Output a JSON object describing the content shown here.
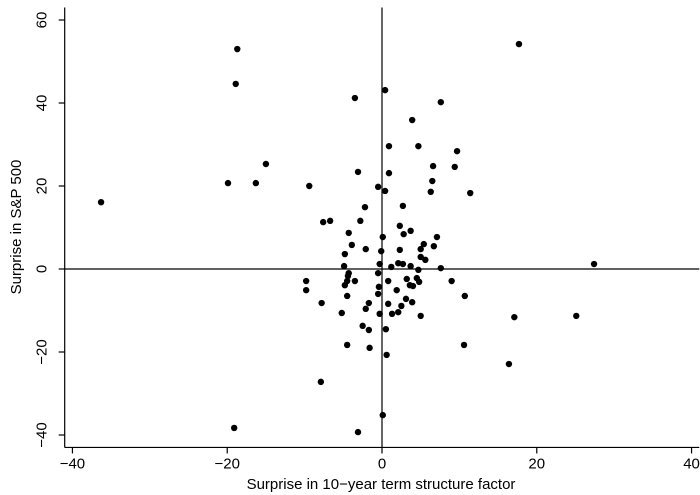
{
  "chart_data": {
    "type": "scatter",
    "xlabel": "Surprise in 10−year term structure factor",
    "ylabel": "Surprise in S&P 500",
    "xlim": [
      -41,
      41
    ],
    "ylim": [
      -43,
      63
    ],
    "xticks": [
      {
        "value": -40,
        "label": "−40"
      },
      {
        "value": -20,
        "label": "−20"
      },
      0,
      20,
      40
    ],
    "yticks": [
      {
        "value": -40,
        "label": "−40"
      },
      {
        "value": -20,
        "label": "−20"
      },
      0,
      20,
      40,
      60
    ],
    "reference_lines": {
      "x": 0,
      "y": 0
    },
    "color": "#000000",
    "x": [
      -18.7,
      -18.9,
      17.7,
      0.4,
      -3.5,
      7.6,
      3.9,
      0.9,
      4.7,
      9.7,
      -15.0,
      6.6,
      9.4,
      0.9,
      -3.1,
      6.5,
      -19.9,
      -16.3,
      -9.4,
      -0.5,
      0.4,
      6.3,
      11.4,
      -36.3,
      2.7,
      -2.2,
      -6.7,
      -7.6,
      -2.8,
      2.3,
      3.7,
      2.8,
      -4.3,
      0.1,
      7.1,
      -3.9,
      5.4,
      -2.1,
      2.3,
      -0.1,
      -4.8,
      6.7,
      5.0,
      5.0,
      5.6,
      2.1,
      2.7,
      -0.3,
      3.7,
      1.2,
      -4.9,
      7.6,
      27.4,
      4.7,
      -4.3,
      -0.5,
      -4.4,
      4.5,
      3.2,
      -9.8,
      -3.5,
      -4.5,
      0.8,
      4.8,
      -4.8,
      3.6,
      9.0,
      4.0,
      -0.4,
      -9.8,
      1.9,
      -0.5,
      -4.5,
      10.7,
      3.1,
      3.9,
      -7.8,
      -1.7,
      0.8,
      2.5,
      1.3,
      -2.1,
      -5.2,
      -0.3,
      2.1,
      5.0,
      17.1,
      25.1,
      -2.5,
      0.5,
      -1.7,
      -4.5,
      10.6,
      -1.6,
      0.6,
      16.4,
      -7.9,
      0.1,
      -19.1,
      -3.1
    ],
    "values": [
      53.0,
      44.6,
      54.2,
      43.1,
      41.2,
      40.2,
      35.9,
      29.6,
      29.6,
      28.4,
      25.3,
      24.8,
      24.6,
      23.1,
      23.4,
      21.2,
      20.7,
      20.7,
      20.0,
      19.8,
      18.8,
      18.6,
      18.3,
      16.1,
      15.2,
      14.9,
      11.6,
      11.3,
      11.6,
      10.4,
      9.2,
      8.4,
      8.7,
      7.7,
      7.7,
      5.8,
      6.0,
      4.8,
      4.6,
      4.3,
      3.6,
      5.5,
      4.8,
      2.9,
      2.2,
      1.4,
      1.2,
      1.2,
      0.7,
      0.5,
      0.7,
      0.2,
      1.2,
      -0.2,
      -1.0,
      -1.0,
      -1.7,
      -2.2,
      -2.4,
      -2.9,
      -2.9,
      -2.9,
      -2.9,
      -3.1,
      -3.9,
      -3.9,
      -2.9,
      -4.1,
      -4.3,
      -5.1,
      -5.1,
      -6.0,
      -6.5,
      -6.5,
      -7.2,
      -8.0,
      -8.2,
      -8.2,
      -8.4,
      -8.9,
      -10.8,
      -9.6,
      -10.6,
      -10.8,
      -10.4,
      -11.3,
      -11.6,
      -11.3,
      -13.7,
      -14.5,
      -14.7,
      -18.3,
      -18.3,
      -19.0,
      -20.7,
      -22.9,
      -27.2,
      -35.2,
      -38.3,
      -39.3
    ]
  }
}
